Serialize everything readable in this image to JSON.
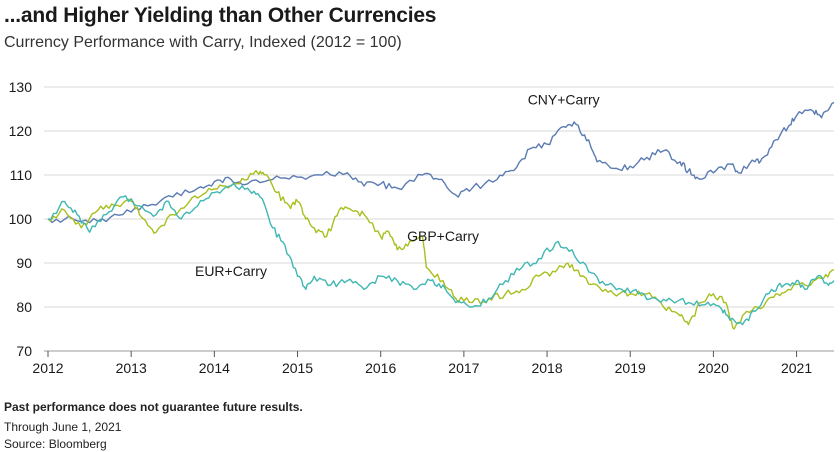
{
  "header": {
    "title": "...and Higher Yielding than Other Currencies",
    "subtitle": "Currency Performance with Carry, Indexed (2012 = 100)"
  },
  "footer": {
    "disclaimer": "Past performance does not guarantee future results.",
    "through": "Through June 1, 2021",
    "source": "Source: Bloomberg"
  },
  "chart_data": {
    "type": "line",
    "title": "...and Higher Yielding than Other Currencies",
    "subtitle": "Currency Performance with Carry, Indexed (2012 = 100)",
    "xlabel": "",
    "ylabel": "",
    "xlim": [
      2012.0,
      2021.45
    ],
    "ylim": [
      70,
      130
    ],
    "xticks": [
      2012,
      2013,
      2014,
      2015,
      2016,
      2017,
      2018,
      2019,
      2020,
      2021
    ],
    "yticks": [
      70,
      80,
      90,
      100,
      110,
      120,
      130
    ],
    "grid": "horizontal",
    "legend": "none (direct labels)",
    "series": [
      {
        "name": "CNY+Carry",
        "color": "#5b7bb3",
        "points": [
          [
            2012.0,
            100
          ],
          [
            2012.3,
            100
          ],
          [
            2012.6,
            99.5
          ],
          [
            2012.9,
            101
          ],
          [
            2013.2,
            103
          ],
          [
            2013.5,
            105
          ],
          [
            2013.8,
            107
          ],
          [
            2014.0,
            108.5
          ],
          [
            2014.2,
            109
          ],
          [
            2014.4,
            108
          ],
          [
            2014.7,
            109
          ],
          [
            2015.0,
            109.5
          ],
          [
            2015.3,
            110
          ],
          [
            2015.6,
            110.5
          ],
          [
            2015.8,
            107.5
          ],
          [
            2016.0,
            108
          ],
          [
            2016.2,
            107
          ],
          [
            2016.5,
            110
          ],
          [
            2016.7,
            109
          ],
          [
            2016.9,
            105.5
          ],
          [
            2017.1,
            107
          ],
          [
            2017.4,
            109
          ],
          [
            2017.6,
            111
          ],
          [
            2017.8,
            116
          ],
          [
            2018.0,
            117
          ],
          [
            2018.2,
            121
          ],
          [
            2018.35,
            121.5
          ],
          [
            2018.5,
            118
          ],
          [
            2018.6,
            113
          ],
          [
            2018.8,
            111.5
          ],
          [
            2019.0,
            112
          ],
          [
            2019.2,
            114
          ],
          [
            2019.4,
            115.5
          ],
          [
            2019.6,
            113
          ],
          [
            2019.7,
            111
          ],
          [
            2019.8,
            109.5
          ],
          [
            2020.0,
            110.5
          ],
          [
            2020.2,
            112.5
          ],
          [
            2020.3,
            110.5
          ],
          [
            2020.5,
            113
          ],
          [
            2020.6,
            114
          ],
          [
            2020.75,
            118
          ],
          [
            2020.9,
            121
          ],
          [
            2021.0,
            123.5
          ],
          [
            2021.2,
            124.5
          ],
          [
            2021.3,
            123
          ],
          [
            2021.45,
            126.5
          ]
        ]
      },
      {
        "name": "GBP+Carry",
        "color": "#a9bf1e",
        "points": [
          [
            2012.0,
            100
          ],
          [
            2012.2,
            102
          ],
          [
            2012.4,
            98
          ],
          [
            2012.6,
            102
          ],
          [
            2012.8,
            103
          ],
          [
            2013.0,
            104
          ],
          [
            2013.15,
            100
          ],
          [
            2013.3,
            97
          ],
          [
            2013.5,
            101
          ],
          [
            2013.7,
            104
          ],
          [
            2013.9,
            106
          ],
          [
            2014.1,
            107.5
          ],
          [
            2014.3,
            108
          ],
          [
            2014.5,
            111
          ],
          [
            2014.6,
            110
          ],
          [
            2014.75,
            106
          ],
          [
            2014.9,
            103
          ],
          [
            2015.0,
            104
          ],
          [
            2015.1,
            100
          ],
          [
            2015.2,
            98
          ],
          [
            2015.35,
            96
          ],
          [
            2015.5,
            102
          ],
          [
            2015.65,
            102
          ],
          [
            2015.8,
            101
          ],
          [
            2016.0,
            96
          ],
          [
            2016.1,
            97
          ],
          [
            2016.2,
            93
          ],
          [
            2016.35,
            95
          ],
          [
            2016.5,
            96
          ],
          [
            2016.55,
            89
          ],
          [
            2016.75,
            86
          ],
          [
            2016.9,
            82
          ],
          [
            2017.1,
            81
          ],
          [
            2017.3,
            82
          ],
          [
            2017.5,
            83
          ],
          [
            2017.7,
            84
          ],
          [
            2017.9,
            87
          ],
          [
            2018.1,
            88
          ],
          [
            2018.25,
            90
          ],
          [
            2018.4,
            87
          ],
          [
            2018.6,
            85
          ],
          [
            2018.8,
            83
          ],
          [
            2019.0,
            83
          ],
          [
            2019.2,
            83
          ],
          [
            2019.4,
            80
          ],
          [
            2019.6,
            78
          ],
          [
            2019.7,
            76
          ],
          [
            2019.85,
            81
          ],
          [
            2020.0,
            83
          ],
          [
            2020.15,
            81
          ],
          [
            2020.25,
            75
          ],
          [
            2020.4,
            79
          ],
          [
            2020.6,
            80
          ],
          [
            2020.75,
            83
          ],
          [
            2020.9,
            84
          ],
          [
            2021.1,
            85
          ],
          [
            2021.3,
            86.5
          ],
          [
            2021.45,
            88.5
          ]
        ]
      },
      {
        "name": "EUR+Carry",
        "color": "#3fb7b2",
        "points": [
          [
            2012.0,
            100
          ],
          [
            2012.2,
            104
          ],
          [
            2012.35,
            101
          ],
          [
            2012.5,
            97
          ],
          [
            2012.7,
            101
          ],
          [
            2012.9,
            105
          ],
          [
            2013.1,
            103
          ],
          [
            2013.3,
            101
          ],
          [
            2013.45,
            104
          ],
          [
            2013.6,
            100
          ],
          [
            2013.8,
            103
          ],
          [
            2014.0,
            106
          ],
          [
            2014.2,
            107.5
          ],
          [
            2014.4,
            107
          ],
          [
            2014.55,
            105
          ],
          [
            2014.7,
            98
          ],
          [
            2014.85,
            94
          ],
          [
            2015.0,
            87
          ],
          [
            2015.1,
            84
          ],
          [
            2015.2,
            87
          ],
          [
            2015.4,
            85
          ],
          [
            2015.6,
            86
          ],
          [
            2015.8,
            84
          ],
          [
            2016.0,
            87
          ],
          [
            2016.2,
            86
          ],
          [
            2016.4,
            84
          ],
          [
            2016.6,
            86
          ],
          [
            2016.75,
            85
          ],
          [
            2016.9,
            81
          ],
          [
            2017.1,
            80
          ],
          [
            2017.3,
            82
          ],
          [
            2017.5,
            86
          ],
          [
            2017.7,
            89
          ],
          [
            2017.9,
            91
          ],
          [
            2018.1,
            94.5
          ],
          [
            2018.3,
            93
          ],
          [
            2018.5,
            88
          ],
          [
            2018.7,
            85
          ],
          [
            2018.9,
            84
          ],
          [
            2019.1,
            83
          ],
          [
            2019.3,
            82
          ],
          [
            2019.5,
            81.5
          ],
          [
            2019.7,
            81
          ],
          [
            2019.9,
            80.5
          ],
          [
            2020.1,
            79.5
          ],
          [
            2020.2,
            77
          ],
          [
            2020.35,
            76
          ],
          [
            2020.5,
            79
          ],
          [
            2020.7,
            84
          ],
          [
            2020.85,
            85
          ],
          [
            2021.0,
            86
          ],
          [
            2021.1,
            84
          ],
          [
            2021.25,
            87
          ],
          [
            2021.35,
            85.5
          ],
          [
            2021.45,
            86
          ]
        ]
      }
    ],
    "annotations": [
      {
        "text": "CNY+Carry",
        "x": 2018.2,
        "y": 126
      },
      {
        "text": "GBP+Carry",
        "x": 2016.75,
        "y": 95
      },
      {
        "text": "EUR+Carry",
        "x": 2014.2,
        "y": 87
      }
    ]
  }
}
